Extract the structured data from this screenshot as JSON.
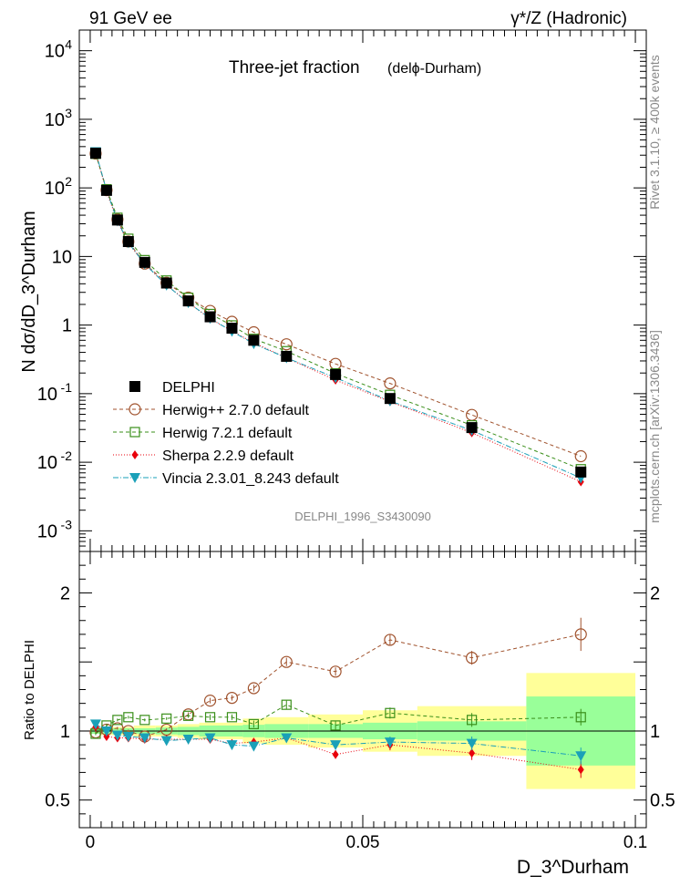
{
  "header": {
    "left": "91 GeV ee",
    "right": "γ*/Z (Hadronic)"
  },
  "side": {
    "version": "Rivet 3.1.10, ≥ 400k events",
    "site": "mcplots.cern.ch [arXiv:1306.3436]"
  },
  "chart_data": {
    "type": "scatter",
    "title": "Three-jet fraction",
    "title_note": "(delϕ-Durham)",
    "analysis": "DELPHI_1996_S3430090",
    "xlabel": "D_3^Durham",
    "ylabel": "N dσ/dD_3^Durham",
    "ratio_ylabel": "Ratio to DELPHI",
    "xlim": [
      -0.002,
      0.102
    ],
    "ylim": [
      0.0005,
      20000
    ],
    "yscale": "log",
    "ratio_ylim": [
      0.3,
      2.3
    ],
    "x_ticks": [
      "0",
      "0.05",
      "0.1"
    ],
    "y_ticks": [
      "10^-3",
      "10^-2",
      "10^-1",
      "1",
      "10",
      "10^2",
      "10^3",
      "10^4"
    ],
    "ratio_ticks": [
      "0.5",
      "1",
      "2"
    ],
    "bins": [
      {
        "lo": 0.0,
        "hi": 0.002
      },
      {
        "lo": 0.002,
        "hi": 0.004
      },
      {
        "lo": 0.004,
        "hi": 0.006
      },
      {
        "lo": 0.006,
        "hi": 0.008
      },
      {
        "lo": 0.008,
        "hi": 0.012
      },
      {
        "lo": 0.012,
        "hi": 0.016
      },
      {
        "lo": 0.016,
        "hi": 0.02
      },
      {
        "lo": 0.02,
        "hi": 0.024
      },
      {
        "lo": 0.024,
        "hi": 0.028
      },
      {
        "lo": 0.028,
        "hi": 0.032
      },
      {
        "lo": 0.032,
        "hi": 0.04
      },
      {
        "lo": 0.04,
        "hi": 0.05
      },
      {
        "lo": 0.05,
        "hi": 0.06
      },
      {
        "lo": 0.06,
        "hi": 0.08
      },
      {
        "lo": 0.08,
        "hi": 0.1
      }
    ],
    "x": [
      0.001,
      0.003,
      0.005,
      0.007,
      0.01,
      0.014,
      0.018,
      0.022,
      0.026,
      0.03,
      0.036,
      0.045,
      0.055,
      0.07,
      0.09
    ],
    "band_stat": [
      0.02,
      0.02,
      0.02,
      0.02,
      0.02,
      0.025,
      0.03,
      0.04,
      0.04,
      0.045,
      0.05,
      0.05,
      0.06,
      0.07,
      0.25
    ],
    "band_total": [
      0.02,
      0.03,
      0.03,
      0.03,
      0.04,
      0.04,
      0.05,
      0.06,
      0.06,
      0.09,
      0.1,
      0.12,
      0.15,
      0.18,
      0.42
    ],
    "series": [
      {
        "name": "DELPHI",
        "color": "#000000",
        "marker": "filled-square",
        "dash": "",
        "values": [
          320,
          92,
          34,
          16.5,
          8.2,
          4.1,
          2.25,
          1.32,
          0.9,
          0.6,
          0.35,
          0.19,
          0.085,
          0.032,
          0.0072
        ]
      },
      {
        "name": "Herwig++ 2.7.0 default",
        "color": "#a0522d",
        "marker": "open-circle",
        "dash": "4,3",
        "ratio": [
          0.99,
          1.01,
          1.02,
          1.0,
          0.96,
          1.01,
          1.12,
          1.22,
          1.24,
          1.31,
          1.5,
          1.43,
          1.66,
          1.53,
          1.7
        ],
        "ratio_err": [
          0.01,
          0.01,
          0.01,
          0.01,
          0.01,
          0.01,
          0.015,
          0.02,
          0.02,
          0.025,
          0.03,
          0.03,
          0.04,
          0.05,
          0.12
        ]
      },
      {
        "name": "Herwig 7.2.1 default",
        "color": "#3a8f1a",
        "marker": "open-square",
        "dash": "4,3",
        "ratio": [
          0.98,
          1.04,
          1.08,
          1.1,
          1.08,
          1.09,
          1.11,
          1.1,
          1.1,
          1.05,
          1.19,
          1.04,
          1.13,
          1.08,
          1.1
        ],
        "ratio_err": [
          0.01,
          0.01,
          0.01,
          0.01,
          0.01,
          0.01,
          0.015,
          0.02,
          0.02,
          0.025,
          0.03,
          0.03,
          0.04,
          0.05,
          0.06
        ]
      },
      {
        "name": "Sherpa 2.2.9 default",
        "color": "#e8000b",
        "marker": "filled-diamond",
        "dash": "1,2",
        "ratio": [
          1.03,
          0.96,
          0.95,
          0.95,
          0.94,
          0.94,
          0.94,
          0.94,
          0.91,
          0.92,
          0.95,
          0.83,
          0.9,
          0.84,
          0.72
        ],
        "ratio_err": [
          0.01,
          0.01,
          0.01,
          0.01,
          0.01,
          0.01,
          0.015,
          0.02,
          0.02,
          0.025,
          0.03,
          0.03,
          0.04,
          0.05,
          0.06
        ]
      },
      {
        "name": "Vincia 2.3.01_8.243 default",
        "color": "#1aa0b8",
        "marker": "filled-triangle-down",
        "dash": "6,2,1,2",
        "ratio": [
          1.05,
          1.0,
          0.97,
          0.96,
          0.95,
          0.93,
          0.94,
          0.95,
          0.9,
          0.89,
          0.95,
          0.9,
          0.92,
          0.91,
          0.82
        ],
        "ratio_err": [
          0.01,
          0.01,
          0.01,
          0.01,
          0.01,
          0.01,
          0.015,
          0.02,
          0.02,
          0.025,
          0.03,
          0.03,
          0.04,
          0.05,
          0.06
        ]
      }
    ],
    "colors": {
      "band_inner": "#99ff99",
      "band_outer": "#ffff99",
      "frame": "#000000"
    }
  }
}
